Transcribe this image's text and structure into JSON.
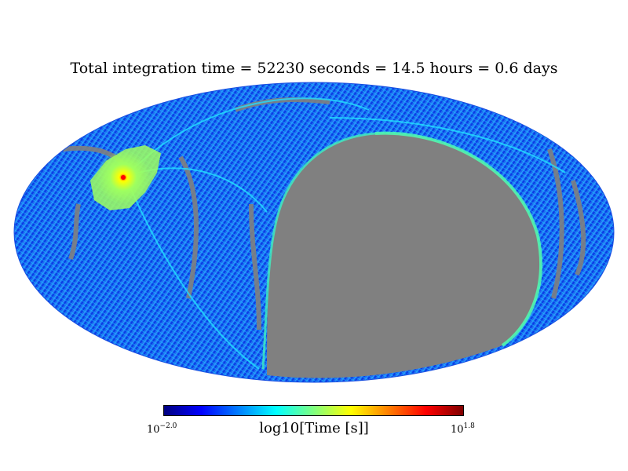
{
  "title": "Total integration time = 52230 seconds = 14.5 hours = 0.6 days",
  "map": {
    "projection": "mollweide",
    "nodata_color": "#808080",
    "colormap": "jet"
  },
  "colorbar": {
    "label": "log10[Time [s]]",
    "min_base": "10",
    "min_exp": "−2.0",
    "max_base": "10",
    "max_exp": "1.8",
    "colors": [
      "#00007f",
      "#0000ff",
      "#007fff",
      "#00ffff",
      "#7fff7f",
      "#ffff00",
      "#ff7f00",
      "#ff0000",
      "#7f0000"
    ]
  }
}
